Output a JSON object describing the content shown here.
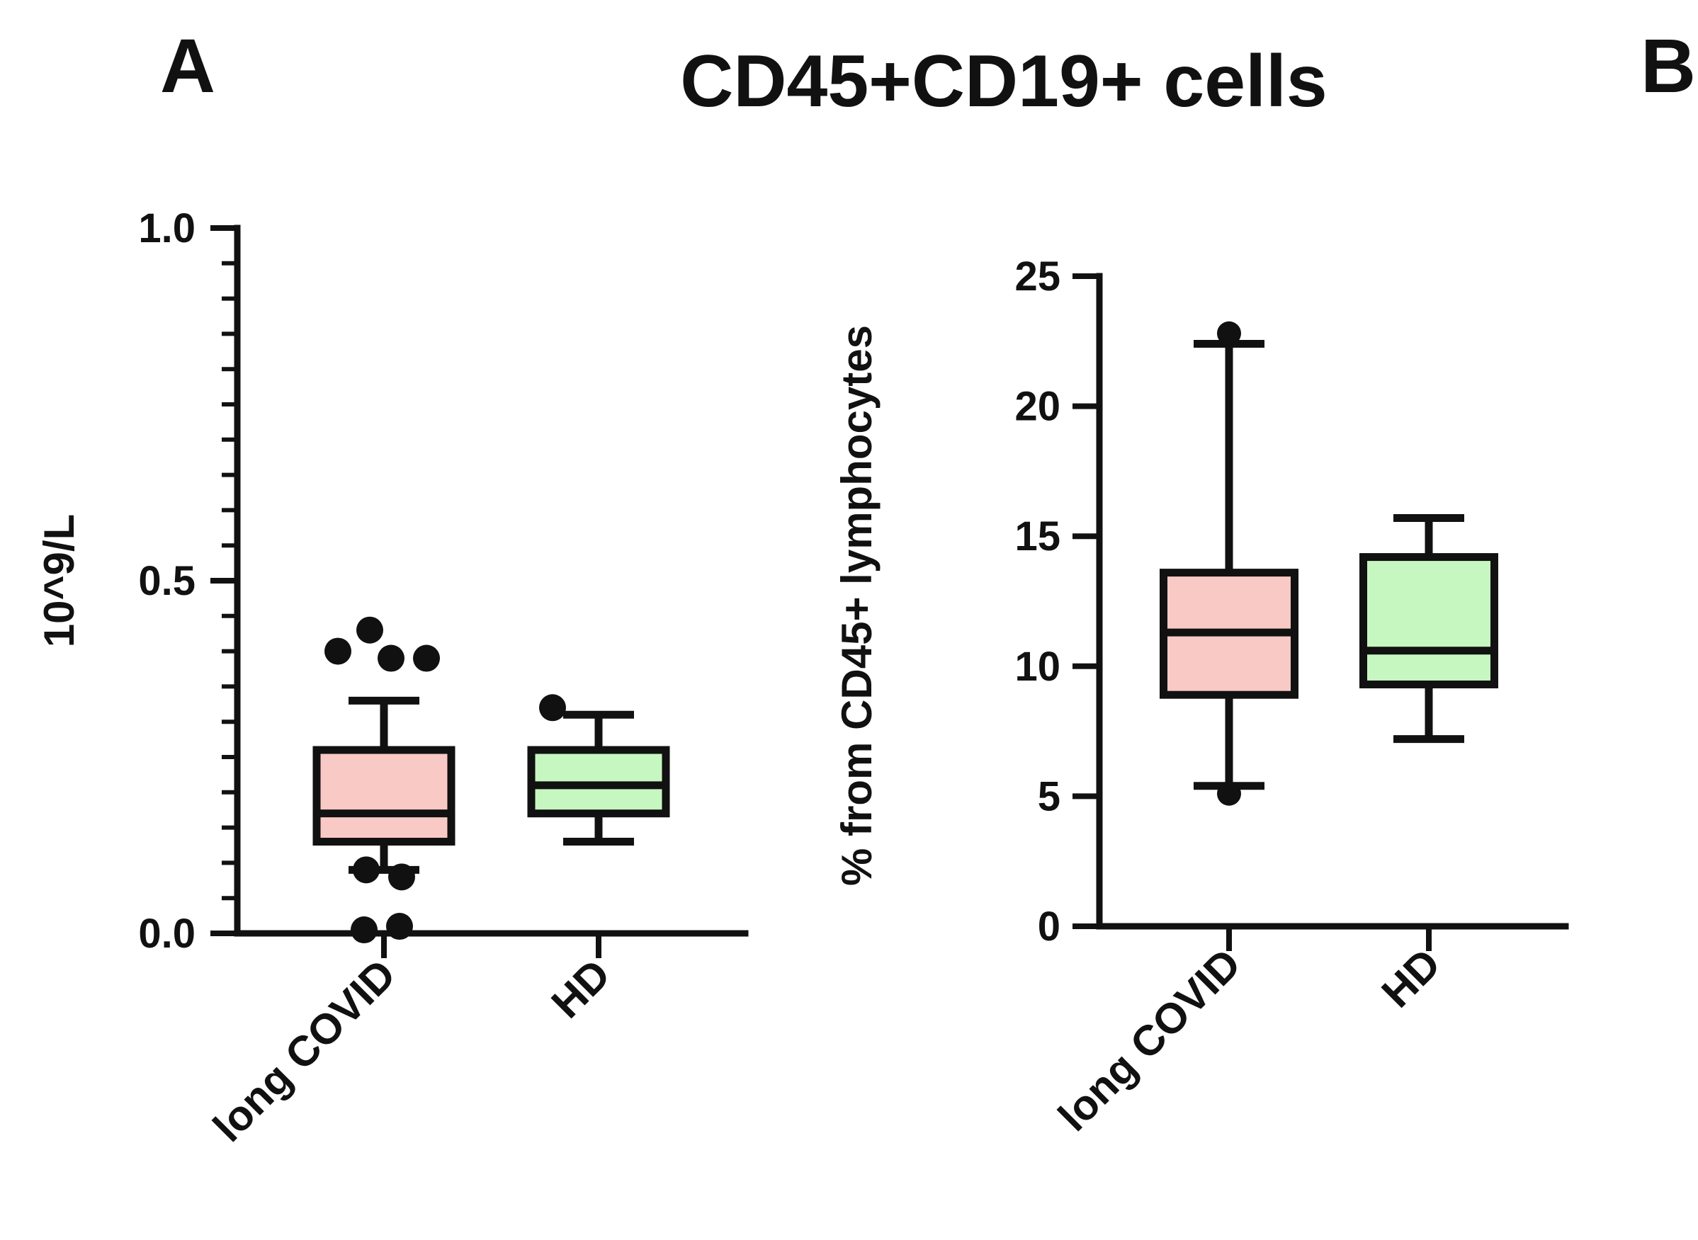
{
  "figure": {
    "title": "CD45+CD19+ cells",
    "panel_a_label": "A",
    "panel_b_label": "B"
  },
  "chart_data": [
    {
      "type": "box",
      "panel": "A",
      "ylabel": "10^9/L",
      "ylim": [
        0,
        1.0
      ],
      "yticks": [
        0.0,
        0.5,
        1.0
      ],
      "ytick_labels": [
        "0.0",
        "0.5",
        "1.0"
      ],
      "minor_tick_step": 0.05,
      "categories": [
        "long COVID",
        "HD"
      ],
      "boxes": [
        {
          "name": "long COVID",
          "whisker_low": 0.09,
          "q1": 0.13,
          "median": 0.17,
          "q3": 0.26,
          "whisker_high": 0.33,
          "fill": "#f9c9c6",
          "outliers": [
            0.4,
            0.43,
            0.39,
            0.39,
            0.09,
            0.08,
            0.005,
            0.01
          ]
        },
        {
          "name": "HD",
          "whisker_low": 0.13,
          "q1": 0.17,
          "median": 0.21,
          "q3": 0.26,
          "whisker_high": 0.31,
          "fill": "#c7f7c0",
          "outliers": [
            0.32
          ]
        }
      ],
      "grid": false,
      "legend": "none"
    },
    {
      "type": "box",
      "panel": "B",
      "ylabel": "% from CD45+ lymphocytes",
      "ylim": [
        0,
        25
      ],
      "yticks": [
        0,
        5,
        10,
        15,
        20,
        25
      ],
      "ytick_labels": [
        "0",
        "5",
        "10",
        "15",
        "20",
        "25"
      ],
      "categories": [
        "long COVID",
        "HD"
      ],
      "boxes": [
        {
          "name": "long COVID",
          "whisker_low": 5.4,
          "q1": 8.9,
          "median": 11.3,
          "q3": 13.6,
          "whisker_high": 22.4,
          "fill": "#f9c9c6",
          "outliers": [
            22.8,
            5.1
          ]
        },
        {
          "name": "HD",
          "whisker_low": 7.2,
          "q1": 9.3,
          "median": 10.6,
          "q3": 14.2,
          "whisker_high": 15.7,
          "fill": "#c7f7c0",
          "outliers": []
        }
      ],
      "grid": false,
      "legend": "none"
    }
  ]
}
